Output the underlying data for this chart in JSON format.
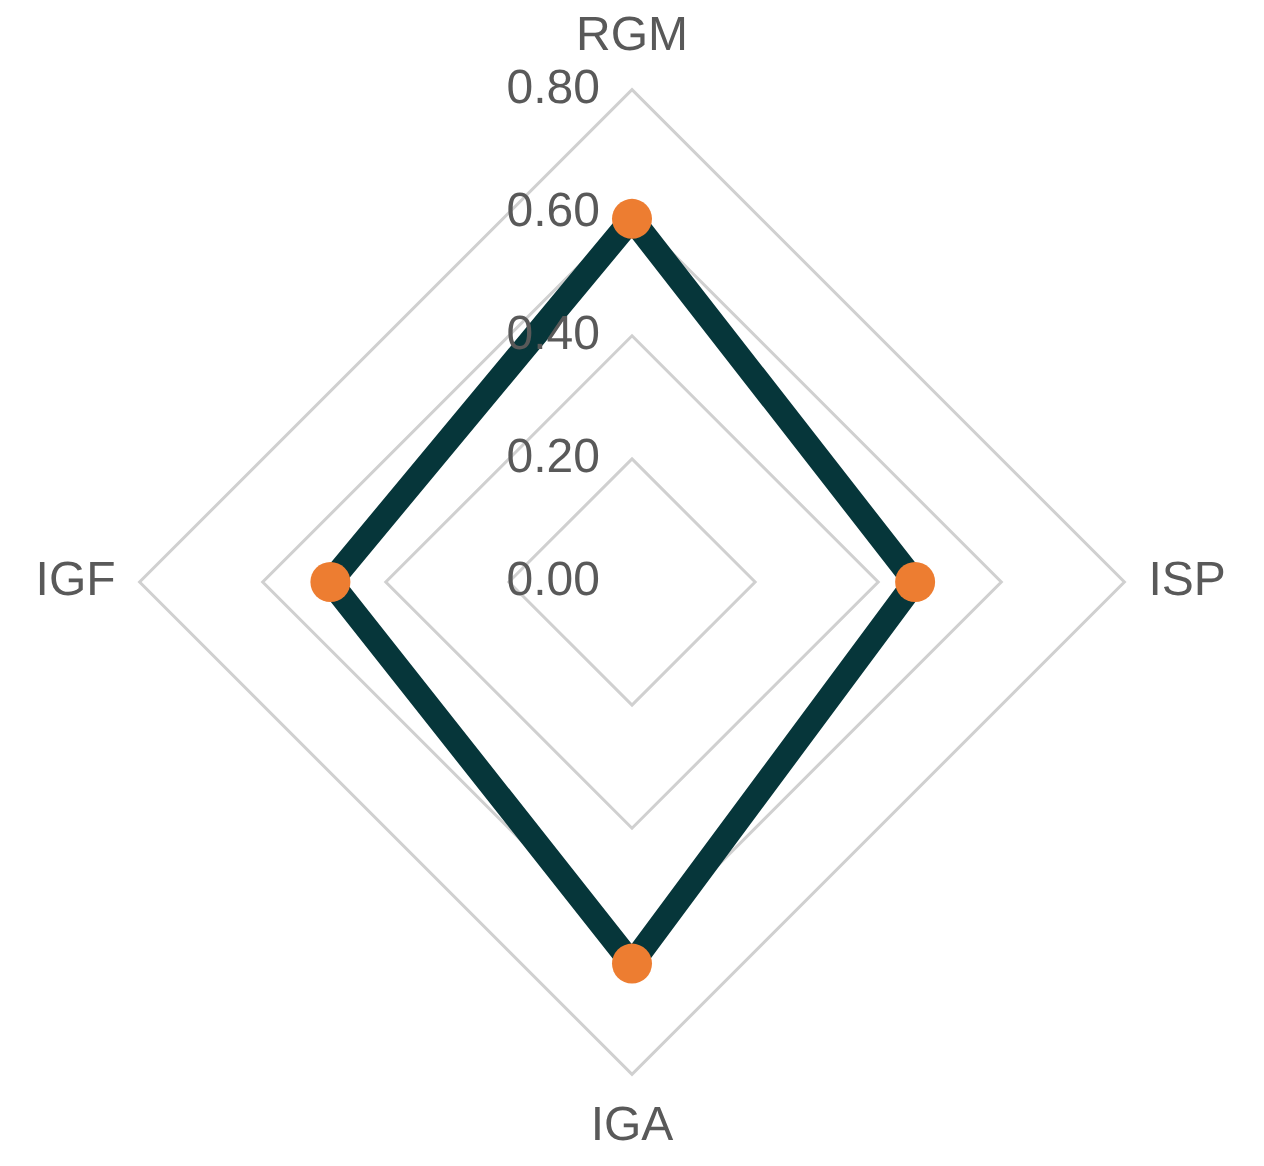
{
  "chart_data": {
    "type": "radar",
    "categories": [
      "RGM",
      "ISP",
      "IGA",
      "IGF"
    ],
    "series": [
      {
        "color": "#06363a",
        "colors": [
          "#ed7d31",
          "#ed7d31",
          "#ed7d31",
          "#ed7d31"
        ],
        "values": [
          0.59,
          0.46,
          0.62,
          0.49
        ]
      }
    ],
    "ylim": [
      0,
      0.8
    ],
    "yticks": [
      {
        "value": 0,
        "label": "0.00"
      },
      {
        "value": 0.2,
        "label": "0.20"
      },
      {
        "value": 0.4,
        "label": "0.40"
      },
      {
        "value": 0.6,
        "label": "0.60"
      },
      {
        "value": 0.8,
        "label": "0.80"
      }
    ],
    "grid": true,
    "legend": false,
    "marker": "circle",
    "line_style": "solid"
  }
}
